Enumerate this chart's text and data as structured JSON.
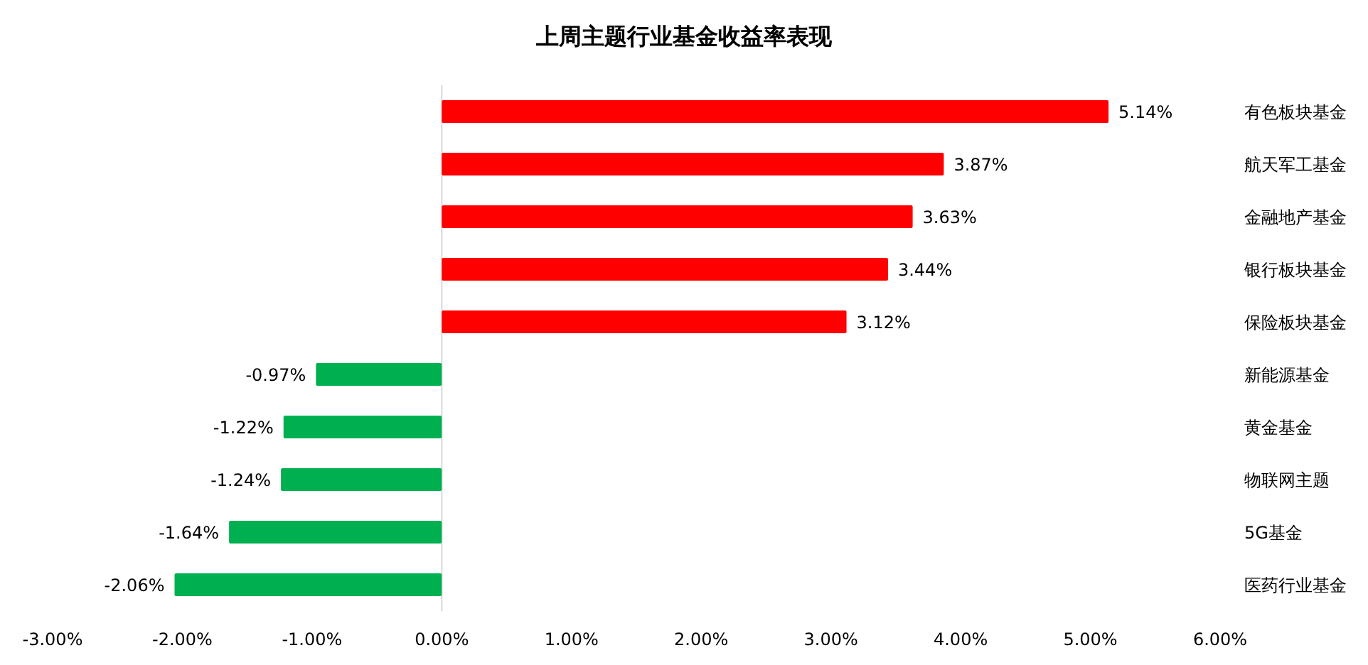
{
  "chart_data": {
    "type": "bar",
    "orientation": "horizontal",
    "title": "上周主题行业基金收益率表现",
    "categories": [
      "有色板块基金",
      "航天军工基金",
      "金融地产基金",
      "银行板块基金",
      "保险板块基金",
      "新能源基金",
      "黄金基金",
      "物联网主题",
      "5G基金",
      "医药行业基金"
    ],
    "values": [
      5.14,
      3.87,
      3.63,
      3.44,
      3.12,
      -0.97,
      -1.22,
      -1.24,
      -1.64,
      -2.06
    ],
    "colors": [
      "#ff0000",
      "#ff0000",
      "#ff0000",
      "#ff0000",
      "#ff0000",
      "#00b050",
      "#00b050",
      "#00b050",
      "#00b050",
      "#00b050"
    ],
    "value_labels": [
      "5.14%",
      "3.87%",
      "3.63%",
      "3.44%",
      "3.12%",
      "-0.97%",
      "-1.22%",
      "-1.24%",
      "-1.64%",
      "-2.06%"
    ],
    "xlim": [
      -3,
      6
    ],
    "xticks": [
      {
        "value": -3,
        "label": "-3.00%"
      },
      {
        "value": -2,
        "label": "-2.00%"
      },
      {
        "value": -1,
        "label": "-1.00%"
      },
      {
        "value": 0,
        "label": "0.00%"
      },
      {
        "value": 1,
        "label": "1.00%"
      },
      {
        "value": 2,
        "label": "2.00%"
      },
      {
        "value": 3,
        "label": "3.00%"
      },
      {
        "value": 4,
        "label": "4.00%"
      },
      {
        "value": 5,
        "label": "5.00%"
      },
      {
        "value": 6,
        "label": "6.00%"
      }
    ]
  }
}
